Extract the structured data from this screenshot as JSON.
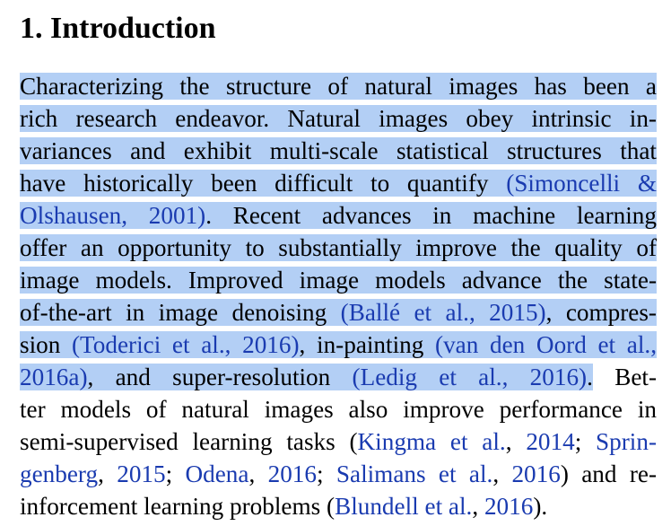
{
  "section": {
    "number": "1.",
    "title": "Introduction"
  },
  "highlight_color": "#b3cff5",
  "citation_color": "#1a3bb0",
  "paragraph": {
    "lines": [
      [
        {
          "t": "Characterizing the structure of natural images has been a",
          "h": true
        }
      ],
      [
        {
          "t": "rich research endeavor. Natural images obey intrinsic in-",
          "h": true
        }
      ],
      [
        {
          "t": "variances and exhibit multi-scale statistical structures that",
          "h": true
        }
      ],
      [
        {
          "t": "have historically been difficult to quantify ",
          "h": true
        },
        {
          "t": "(Simoncelli &",
          "h": true,
          "c": true
        }
      ],
      [
        {
          "t": "Olshausen, 2001)",
          "h": true,
          "c": true
        },
        {
          "t": ". Recent advances in machine learning",
          "h": true
        }
      ],
      [
        {
          "t": "offer an opportunity to substantially improve the quality of",
          "h": true
        }
      ],
      [
        {
          "t": "image models. Improved image models advance the state-",
          "h": true
        }
      ],
      [
        {
          "t": "of-the-art in image denoising ",
          "h": true
        },
        {
          "t": "(Ballé et al., 2015)",
          "h": true,
          "c": true
        },
        {
          "t": ", compres-",
          "h": true
        }
      ],
      [
        {
          "t": "sion ",
          "h": true
        },
        {
          "t": "(Toderici et al., 2016)",
          "h": true,
          "c": true
        },
        {
          "t": ", in-painting ",
          "h": true
        },
        {
          "t": "(van den Oord et al.,",
          "h": true,
          "c": true
        }
      ],
      [
        {
          "t": "2016a)",
          "h": true,
          "c": true
        },
        {
          "t": ", and super-resolution ",
          "h": true
        },
        {
          "t": "(Ledig et al., 2016)",
          "h": true,
          "c": true
        },
        {
          "t": ".",
          "h": true
        },
        {
          "t": " Bet-"
        }
      ],
      [
        {
          "t": "ter models of natural images also improve performance in"
        }
      ],
      [
        {
          "t": "semi-supervised learning tasks ("
        },
        {
          "t": "Kingma et al.",
          "c": true
        },
        {
          "t": ", "
        },
        {
          "t": "2014",
          "c": true
        },
        {
          "t": "; "
        },
        {
          "t": "Sprin-",
          "c": true
        }
      ],
      [
        {
          "t": "genberg",
          "c": true
        },
        {
          "t": ", "
        },
        {
          "t": "2015",
          "c": true
        },
        {
          "t": "; "
        },
        {
          "t": "Odena",
          "c": true
        },
        {
          "t": ", "
        },
        {
          "t": "2016",
          "c": true
        },
        {
          "t": "; "
        },
        {
          "t": "Salimans et al.",
          "c": true
        },
        {
          "t": ", "
        },
        {
          "t": "2016",
          "c": true
        },
        {
          "t": ") and re-"
        }
      ],
      [
        {
          "t": "inforcement learning problems ("
        },
        {
          "t": "Blundell et al.",
          "c": true
        },
        {
          "t": ", "
        },
        {
          "t": "2016",
          "c": true
        },
        {
          "t": ")."
        }
      ]
    ]
  }
}
